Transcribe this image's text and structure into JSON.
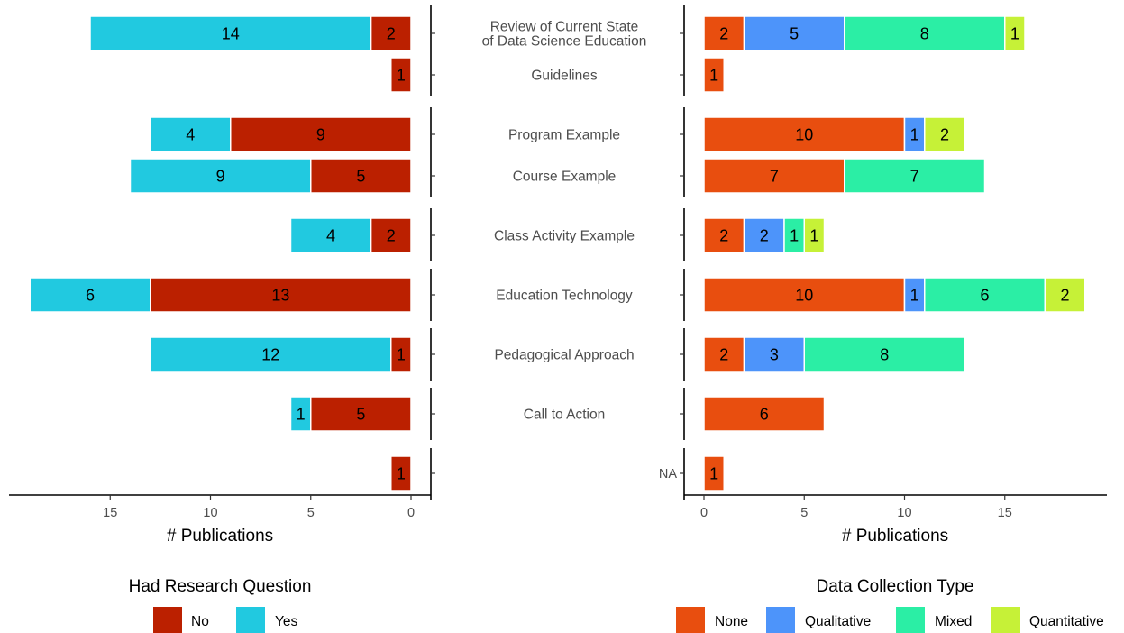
{
  "chart_data": [
    {
      "type": "bar",
      "orientation": "horizontal",
      "reversed_x": true,
      "stacked": true,
      "xlabel": "# Publications",
      "xlim": [
        0,
        19.5
      ],
      "x_ticks": [
        15,
        10,
        5,
        0
      ],
      "legend_title": "Had Research Question",
      "legend_position": "bottom",
      "categories": [
        "Review of Current State\nof Data Science Education",
        "Guidelines",
        "Program Example",
        "Course Example",
        "Class Activity Example",
        "Education Technology",
        "Pedagogical Approach",
        "Call to Action",
        "NA"
      ],
      "series": [
        {
          "name": "No",
          "color": "#BB2000",
          "values": [
            2,
            1,
            9,
            5,
            2,
            13,
            1,
            5,
            1
          ]
        },
        {
          "name": "Yes",
          "color": "#21C9E0",
          "values": [
            14,
            null,
            4,
            9,
            4,
            6,
            12,
            1,
            null
          ]
        }
      ]
    },
    {
      "type": "bar",
      "orientation": "horizontal",
      "stacked": true,
      "xlabel": "# Publications",
      "xlim": [
        0,
        19.5
      ],
      "x_ticks": [
        0,
        5,
        10,
        15
      ],
      "legend_title": "Data Collection Type",
      "legend_position": "bottom",
      "categories": [
        "Review of Current State\nof Data Science Education",
        "Guidelines",
        "Program Example",
        "Course Example",
        "Class Activity Example",
        "Education Technology",
        "Pedagogical Approach",
        "Call to Action",
        "NA"
      ],
      "series": [
        {
          "name": "None",
          "color": "#E84E0F",
          "values": [
            2,
            1,
            10,
            7,
            2,
            10,
            2,
            6,
            1
          ]
        },
        {
          "name": "Qualitative",
          "color": "#4D94FA",
          "values": [
            5,
            null,
            1,
            null,
            2,
            1,
            3,
            null,
            null
          ]
        },
        {
          "name": "Mixed",
          "color": "#2BEEA5",
          "values": [
            8,
            null,
            null,
            7,
            1,
            6,
            8,
            null,
            null
          ]
        },
        {
          "name": "Quantitative",
          "color": "#C6F137",
          "values": [
            1,
            null,
            2,
            null,
            1,
            2,
            null,
            null,
            null
          ]
        }
      ]
    }
  ],
  "category_groups": [
    [
      0,
      1
    ],
    [
      2,
      3
    ],
    [
      4
    ],
    [
      5
    ],
    [
      6
    ],
    [
      7
    ],
    [
      8
    ]
  ],
  "center_axis_labels": [
    "Review of Current State\nof Data Science Education",
    "Guidelines",
    "Program Example",
    "Course Example",
    "Class Activity Example",
    "Education Technology",
    "Pedagogical Approach",
    "Call to Action",
    ""
  ],
  "right_axis_labels": [
    "",
    "",
    "",
    "",
    "",
    "",
    "",
    "",
    "NA"
  ]
}
